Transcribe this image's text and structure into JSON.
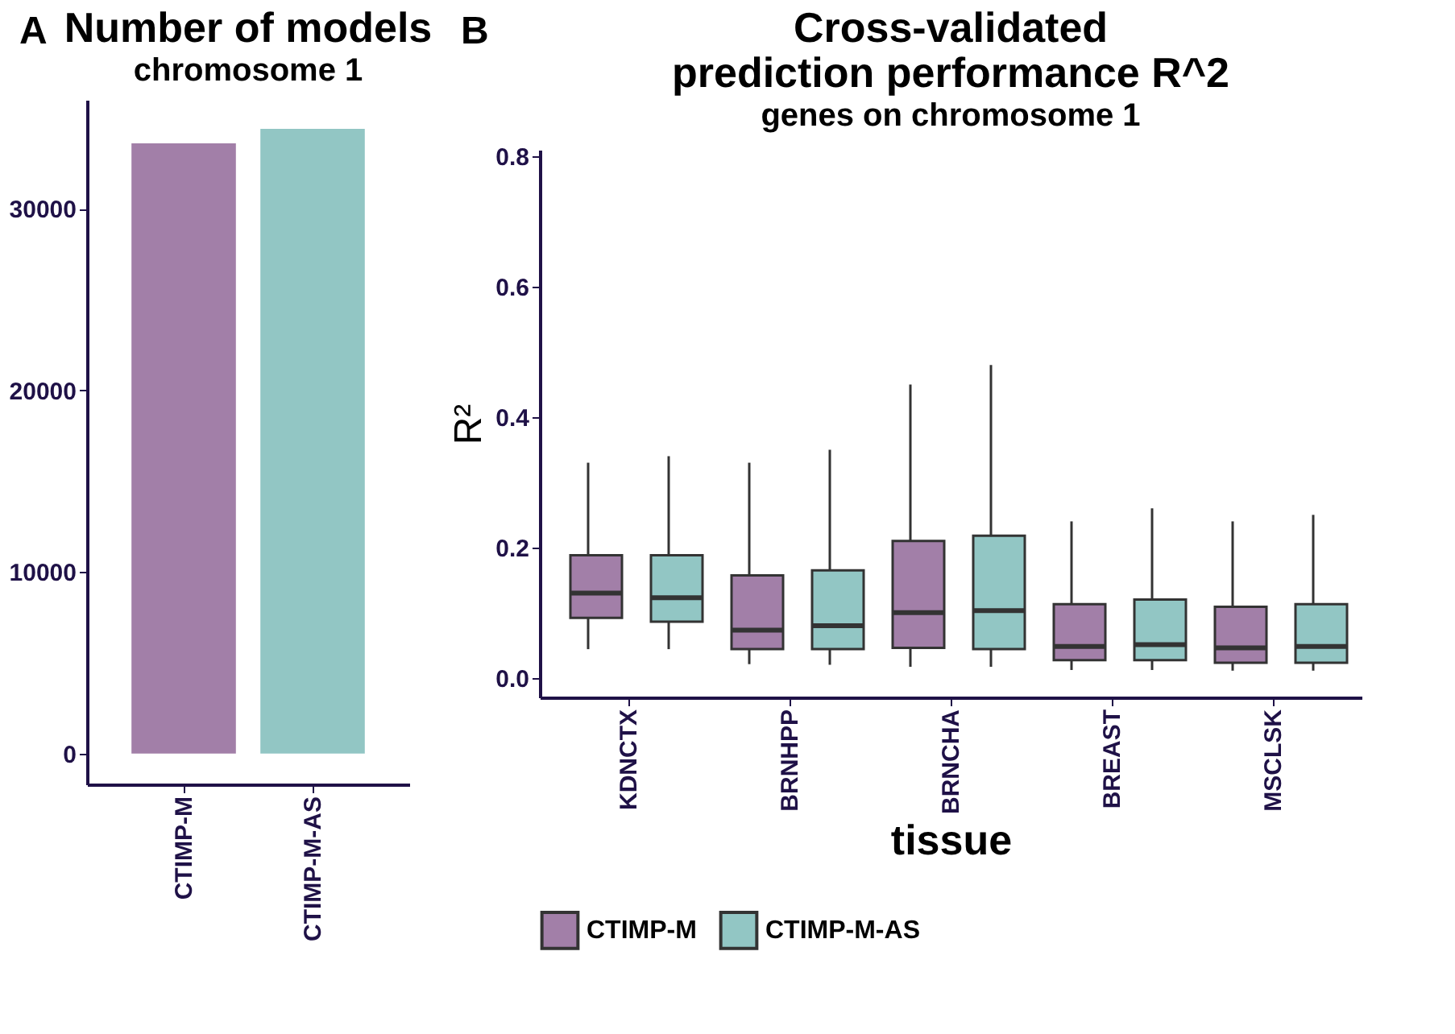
{
  "chart_data": [
    {
      "type": "bar",
      "title": "Number of models",
      "subtitle": "chromosome 1",
      "annotations": [
        "A"
      ],
      "categories": [
        "CTIMP-M",
        "CTIMP-M-AS"
      ],
      "values": [
        33600,
        34400
      ],
      "colors": [
        "#a27fa8",
        "#92c6c4"
      ],
      "ylim": [
        -1700,
        36000
      ],
      "yticks": [
        0,
        10000,
        20000,
        30000
      ],
      "grid": false,
      "legend": false
    },
    {
      "type": "box",
      "title": "Cross-validated\nprediction performance R^2",
      "subtitle": "genes on chromosome 1",
      "annotations": [
        "B"
      ],
      "xlabel": "tissue",
      "ylabel": "R²",
      "categories": [
        "KDNCTX",
        "BRNHPP",
        "BRNCHA",
        "BREAST",
        "MSCLSK"
      ],
      "ylim": [
        -0.03,
        0.81
      ],
      "yticks": [
        {
          "value": 0,
          "label": "0.0"
        },
        0.2,
        0.4,
        0.6,
        0.8
      ],
      "grid": false,
      "legend": "bottom",
      "series": [
        {
          "name": "CTIMP-M",
          "color": "#a27fa8",
          "boxes": [
            {
              "low": 0.044,
              "q1": 0.092,
              "median": 0.13,
              "q3": 0.188,
              "high": 0.33
            },
            {
              "low": 0.021,
              "q1": 0.044,
              "median": 0.073,
              "q3": 0.157,
              "high": 0.33
            },
            {
              "low": 0.017,
              "q1": 0.046,
              "median": 0.1,
              "q3": 0.21,
              "high": 0.45
            },
            {
              "low": 0.012,
              "q1": 0.027,
              "median": 0.048,
              "q3": 0.113,
              "high": 0.24
            },
            {
              "low": 0.011,
              "q1": 0.023,
              "median": 0.046,
              "q3": 0.109,
              "high": 0.24
            }
          ]
        },
        {
          "name": "CTIMP-M-AS",
          "color": "#92c6c4",
          "boxes": [
            {
              "low": 0.044,
              "q1": 0.086,
              "median": 0.123,
              "q3": 0.188,
              "high": 0.34
            },
            {
              "low": 0.02,
              "q1": 0.044,
              "median": 0.08,
              "q3": 0.165,
              "high": 0.35
            },
            {
              "low": 0.017,
              "q1": 0.044,
              "median": 0.103,
              "q3": 0.218,
              "high": 0.48
            },
            {
              "low": 0.012,
              "q1": 0.027,
              "median": 0.051,
              "q3": 0.12,
              "high": 0.26
            },
            {
              "low": 0.011,
              "q1": 0.023,
              "median": 0.048,
              "q3": 0.113,
              "high": 0.25
            }
          ]
        }
      ]
    }
  ]
}
